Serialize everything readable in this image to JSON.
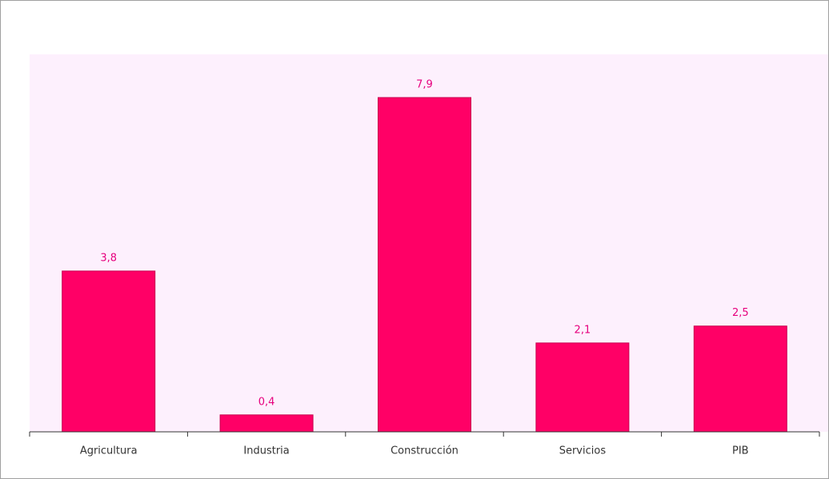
{
  "chart_data": {
    "type": "bar",
    "categories": [
      "Agricultura",
      "Industria",
      "Construcción",
      "Servicios",
      "PIB"
    ],
    "values": [
      3.8,
      0.4,
      7.9,
      2.1,
      2.5
    ],
    "value_labels": [
      "3,8",
      "0,4",
      "7,9",
      "2,1",
      "2,5"
    ],
    "color": "#ff0066"
  }
}
